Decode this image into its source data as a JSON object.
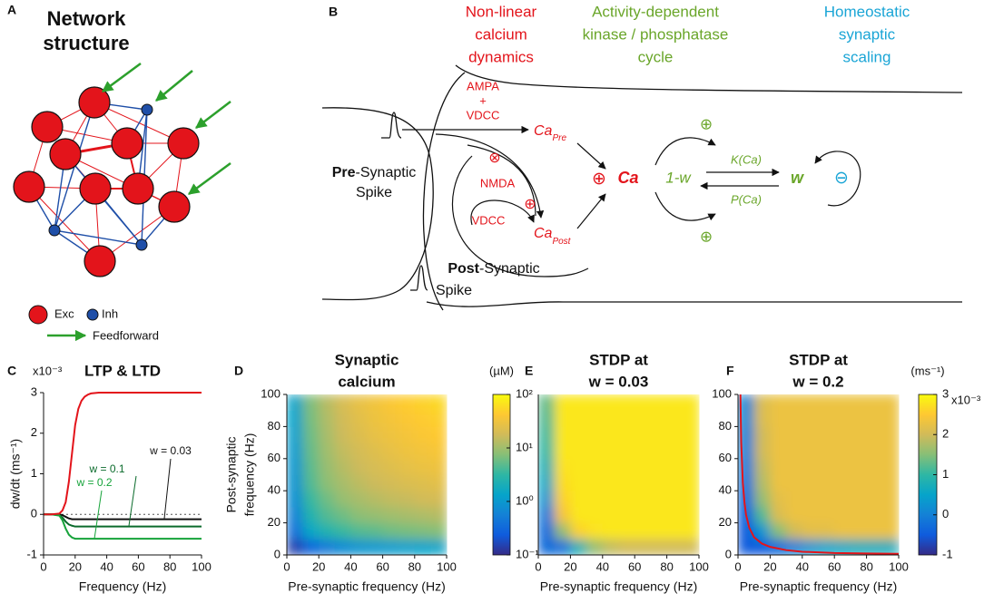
{
  "panel_a": {
    "label": "A",
    "title": [
      "Network",
      "structure"
    ],
    "legend": {
      "exc": "Exc",
      "inh": "Inh",
      "feedforward": "Feedforward"
    }
  },
  "panel_b": {
    "label": "B",
    "headings": {
      "calcium": [
        "Non-linear",
        "calcium",
        "dynamics"
      ],
      "kinase": [
        "Activity-dependent",
        "kinase / phosphatase",
        "cycle"
      ],
      "homeostatic": [
        "Homeostatic",
        "synaptic",
        "scaling"
      ]
    },
    "pre_channels": [
      "AMPA",
      "+",
      "VDCC"
    ],
    "ca_pre": {
      "ca": "Ca",
      "sub": "Pre"
    },
    "inhib": "⊗",
    "nmda": "NMDA",
    "plus_nmda": "⊕",
    "vdcc_post": "VDCC",
    "ca_post": {
      "ca": "Ca",
      "sub": "Post"
    },
    "plus_ca": "⊕",
    "ca": "Ca",
    "one_minus_w": "1-w",
    "k": "K(Ca)",
    "p": "P(Ca)",
    "w": "w",
    "minus": "⊖",
    "plus_k": "⊕",
    "plus_p": "⊕",
    "pre_spike": {
      "bold": "Pre",
      "rest": "-Synaptic",
      "line2": "Spike"
    },
    "post_spike": {
      "bold": "Post",
      "rest": "-Synaptic",
      "line2": "Spike"
    }
  },
  "chart_data": [
    {
      "type": "line",
      "panel": "C",
      "title": "LTP & LTD",
      "scale_label": "x10⁻³",
      "xlabel": "Frequency (Hz)",
      "ylabel": "dw/dt (ms⁻¹)",
      "x": [
        0,
        5,
        10,
        12,
        14,
        16,
        18,
        20,
        22,
        24,
        26,
        28,
        30,
        35,
        40,
        50,
        60,
        70,
        80,
        90,
        100
      ],
      "series": [
        {
          "color": "#e3141b",
          "values": [
            0,
            0,
            0.02,
            0.1,
            0.3,
            0.8,
            1.5,
            2.2,
            2.6,
            2.8,
            2.9,
            2.95,
            2.98,
            3,
            3,
            3,
            3,
            3,
            3,
            3,
            3
          ]
        },
        {
          "color": "#111111",
          "values": [
            0,
            0,
            0,
            -0.02,
            -0.06,
            -0.1,
            -0.12,
            -0.12,
            -0.12,
            -0.12,
            -0.12,
            -0.12,
            -0.12,
            -0.12,
            -0.12,
            -0.12,
            -0.12,
            -0.12,
            -0.12,
            -0.12,
            -0.12
          ]
        },
        {
          "color": "#0b6b2c",
          "values": [
            0,
            0,
            -0.02,
            -0.08,
            -0.18,
            -0.25,
            -0.28,
            -0.3,
            -0.3,
            -0.3,
            -0.3,
            -0.3,
            -0.3,
            -0.3,
            -0.3,
            -0.3,
            -0.3,
            -0.3,
            -0.3,
            -0.3,
            -0.3
          ]
        },
        {
          "color": "#16a33a",
          "values": [
            0,
            0,
            -0.03,
            -0.15,
            -0.35,
            -0.5,
            -0.57,
            -0.6,
            -0.6,
            -0.6,
            -0.6,
            -0.6,
            -0.6,
            -0.6,
            -0.6,
            -0.6,
            -0.6,
            -0.6,
            -0.6,
            -0.6,
            -0.6
          ]
        }
      ],
      "annotations": [
        "w = 0.03",
        "w = 0.1",
        "w = 0.2"
      ],
      "reference_line": 0,
      "xlim": [
        0,
        100
      ],
      "ylim": [
        -1,
        3
      ],
      "xticks": [
        0,
        20,
        40,
        60,
        80,
        100
      ],
      "yticks": [
        -1,
        0,
        1,
        2,
        3
      ]
    },
    {
      "type": "heatmap",
      "panel": "D",
      "title": [
        "Synaptic",
        "calcium"
      ],
      "xlabel": "Pre-synaptic frequency (Hz)",
      "ylabel": [
        "Post-synaptic",
        "frequency (Hz)"
      ],
      "x": [
        5,
        15,
        25,
        35,
        45,
        55,
        65,
        75,
        85,
        95
      ],
      "y": [
        5,
        15,
        25,
        35,
        45,
        55,
        65,
        75,
        85,
        95
      ],
      "z": [
        [
          0.15,
          0.3,
          0.5,
          0.7,
          0.9,
          1.0,
          1.1,
          1.2,
          1.3,
          1.4
        ],
        [
          0.4,
          1.5,
          2.5,
          3.5,
          4.5,
          5,
          6,
          6.5,
          7,
          7.5
        ],
        [
          0.6,
          2.5,
          4.5,
          6,
          8,
          9,
          10,
          11,
          12,
          13
        ],
        [
          0.8,
          3.5,
          6,
          9,
          11,
          13,
          15,
          16,
          18,
          19
        ],
        [
          0.9,
          4.5,
          8,
          11,
          14,
          17,
          19,
          21,
          23,
          25
        ],
        [
          1.0,
          5,
          9,
          13,
          17,
          20,
          23,
          26,
          29,
          31
        ],
        [
          1.1,
          5.5,
          10,
          15,
          19,
          23,
          27,
          31,
          34,
          37
        ],
        [
          1.2,
          6,
          11,
          17,
          22,
          27,
          31,
          35,
          39,
          43
        ],
        [
          1.3,
          6.5,
          12,
          18,
          24,
          30,
          35,
          40,
          44,
          48
        ],
        [
          1.4,
          7,
          13,
          20,
          27,
          33,
          39,
          45,
          50,
          55
        ]
      ],
      "colormap": "parula",
      "clim": [
        0.1,
        100
      ],
      "color_log": true,
      "colorbar": {
        "label": "(µM)",
        "ticks": [
          {
            "value": 0.1,
            "label": "10⁻¹"
          },
          {
            "value": 1,
            "label": "10⁰"
          },
          {
            "value": 10,
            "label": "10¹"
          },
          {
            "value": 100,
            "label": "10²"
          }
        ]
      },
      "xlim": [
        0,
        100
      ],
      "ylim": [
        0,
        100
      ],
      "xticks": [
        0,
        20,
        40,
        60,
        80,
        100
      ],
      "yticks": [
        0,
        20,
        40,
        60,
        80,
        100
      ]
    },
    {
      "type": "heatmap",
      "panel": "E",
      "title": [
        "STDP at",
        "w = 0.03"
      ],
      "xlabel": "Pre-synaptic frequency (Hz)",
      "x": [
        5,
        15,
        25,
        35,
        45,
        55,
        65,
        75,
        85,
        95
      ],
      "y": [
        5,
        15,
        25,
        35,
        45,
        55,
        65,
        75,
        85,
        95
      ],
      "z": [
        [
          -0.3,
          -0.2,
          0.8,
          1.6,
          1.9,
          2.0,
          2.0,
          2.0,
          2.0,
          2.0
        ],
        [
          -0.3,
          1.6,
          2.6,
          2.75,
          2.8,
          2.8,
          2.8,
          2.8,
          2.8,
          2.8
        ],
        [
          -0.1,
          2.4,
          2.8,
          2.8,
          2.8,
          2.8,
          2.8,
          2.8,
          2.8,
          2.8
        ],
        [
          0.3,
          2.6,
          2.8,
          2.8,
          2.8,
          2.8,
          2.8,
          2.8,
          2.8,
          2.8
        ],
        [
          0.6,
          2.7,
          2.8,
          2.8,
          2.8,
          2.8,
          2.8,
          2.8,
          2.8,
          2.8
        ],
        [
          0.8,
          2.75,
          2.8,
          2.8,
          2.8,
          2.8,
          2.8,
          2.8,
          2.8,
          2.8
        ],
        [
          1.0,
          2.8,
          2.8,
          2.8,
          2.8,
          2.8,
          2.8,
          2.8,
          2.8,
          2.8
        ],
        [
          1.1,
          2.8,
          2.8,
          2.8,
          2.8,
          2.8,
          2.8,
          2.8,
          2.8,
          2.8
        ],
        [
          1.2,
          2.8,
          2.8,
          2.8,
          2.8,
          2.8,
          2.8,
          2.8,
          2.8,
          2.8
        ],
        [
          1.3,
          2.8,
          2.8,
          2.8,
          2.8,
          2.8,
          2.8,
          2.8,
          2.8,
          2.8
        ]
      ],
      "colormap": "parula",
      "clim": [
        -1,
        3
      ],
      "xlim": [
        0,
        100
      ],
      "ylim": [
        0,
        100
      ],
      "xticks": [
        0,
        20,
        40,
        60,
        80,
        100
      ]
    },
    {
      "type": "heatmap",
      "panel": "F",
      "title": [
        "STDP at",
        "w = 0.2"
      ],
      "xlabel": "Pre-synaptic frequency (Hz)",
      "x": [
        5,
        15,
        25,
        35,
        45,
        55,
        65,
        75,
        85,
        95
      ],
      "y": [
        5,
        15,
        25,
        35,
        45,
        55,
        65,
        75,
        85,
        95
      ],
      "z": [
        [
          -0.5,
          -0.5,
          -0.3,
          0.0,
          0.3,
          0.5,
          0.6,
          0.7,
          0.7,
          0.7
        ],
        [
          -0.5,
          0.3,
          1.5,
          2.0,
          2.2,
          2.2,
          2.3,
          2.3,
          2.3,
          2.3
        ],
        [
          -0.4,
          1.2,
          2.1,
          2.3,
          2.3,
          2.3,
          2.3,
          2.3,
          2.3,
          2.3
        ],
        [
          -0.3,
          1.6,
          2.2,
          2.3,
          2.3,
          2.3,
          2.3,
          2.3,
          2.3,
          2.3
        ],
        [
          -0.2,
          1.8,
          2.3,
          2.3,
          2.3,
          2.3,
          2.3,
          2.3,
          2.3,
          2.3
        ],
        [
          -0.1,
          1.9,
          2.3,
          2.3,
          2.3,
          2.3,
          2.3,
          2.3,
          2.3,
          2.3
        ],
        [
          0,
          2.0,
          2.3,
          2.3,
          2.3,
          2.3,
          2.3,
          2.3,
          2.3,
          2.3
        ],
        [
          0,
          2.0,
          2.3,
          2.3,
          2.3,
          2.3,
          2.3,
          2.3,
          2.3,
          2.3
        ],
        [
          0.1,
          2.1,
          2.3,
          2.3,
          2.3,
          2.3,
          2.3,
          2.3,
          2.3,
          2.3
        ],
        [
          0.1,
          2.1,
          2.3,
          2.3,
          2.3,
          2.3,
          2.3,
          2.3,
          2.3,
          2.3
        ]
      ],
      "series": [
        {
          "color": "#e3141b",
          "x": [
            1.5,
            2,
            3,
            4,
            5,
            7,
            10,
            15,
            20,
            30,
            40,
            60,
            80,
            100
          ],
          "values": [
            100,
            70,
            45,
            33,
            25,
            17,
            11,
            7,
            5,
            3,
            2,
            1.2,
            0.9,
            0.7
          ]
        }
      ],
      "colormap": "parula",
      "clim": [
        -1,
        3
      ],
      "colorbar": {
        "label": "(ms⁻¹)",
        "scale_label": "x10⁻³",
        "ticks": [
          -1,
          0,
          1,
          2,
          3
        ]
      },
      "xlim": [
        0,
        100
      ],
      "ylim": [
        0,
        100
      ],
      "xticks": [
        0,
        20,
        40,
        60,
        80,
        100
      ],
      "yticks": [
        0,
        20,
        40,
        60,
        80,
        100
      ]
    }
  ]
}
